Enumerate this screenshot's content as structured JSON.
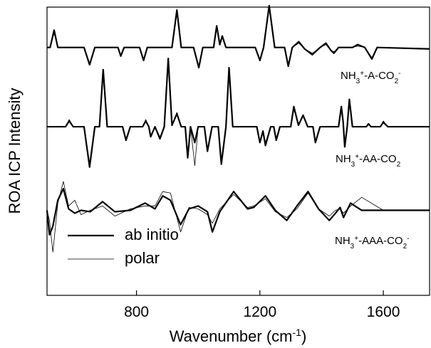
{
  "chart_data": {
    "type": "line",
    "xlabel": [
      "Wavenumber (cm",
      "-1",
      ")"
    ],
    "ylabel": "ROA ICP Intensity",
    "xlim": [
      510,
      1750
    ],
    "ylim": [
      0,
      10
    ],
    "xticks": [
      800,
      1200,
      1600
    ],
    "legend": "lower left",
    "annotations": [
      {
        "parts": [
          "NH",
          "3",
          "+",
          "-A-CO",
          "2",
          "-"
        ]
      },
      {
        "parts": [
          "NH",
          "3",
          "+",
          "-AA-CO",
          "2"
        ]
      },
      {
        "parts": [
          "NH",
          "3",
          "+",
          "-AAA-CO",
          "2",
          "-"
        ]
      }
    ],
    "series": [
      {
        "name": "ab initio",
        "color": "#000000",
        "linewidth": 2.2,
        "x": [
          510,
          520,
          533,
          545,
          630,
          648,
          665,
          740,
          749,
          760,
          810,
          823,
          835,
          915,
          931,
          945,
          985,
          1002,
          1015,
          1050,
          1060,
          1070,
          1078,
          1090,
          1185,
          1200,
          1212,
          1230,
          1248,
          1280,
          1292,
          1305,
          1326,
          1345,
          1370,
          1395,
          1414,
          1430,
          1440,
          1455,
          1500,
          1517,
          1540,
          1563,
          1580,
          1750
        ],
        "values": [
          8.6,
          8.6,
          9.2,
          8.6,
          8.6,
          8.0,
          8.6,
          8.6,
          8.3,
          8.6,
          8.6,
          8.15,
          8.6,
          8.6,
          9.9,
          8.6,
          8.6,
          7.9,
          8.6,
          8.6,
          9.35,
          8.7,
          9.0,
          8.6,
          8.6,
          8.15,
          8.6,
          10.05,
          8.6,
          8.6,
          7.95,
          8.6,
          8.8,
          8.55,
          8.35,
          8.6,
          8.75,
          8.5,
          8.4,
          8.6,
          8.6,
          8.7,
          8.6,
          8.2,
          8.6,
          8.55
        ]
      },
      {
        "name": "polar",
        "color": "#000000",
        "linewidth": 0.8,
        "x": [
          510,
          520,
          533,
          545,
          630,
          648,
          665,
          740,
          749,
          760,
          810,
          823,
          835,
          915,
          931,
          945,
          985,
          1002,
          1015,
          1050,
          1060,
          1070,
          1078,
          1090,
          1185,
          1200,
          1212,
          1230,
          1248,
          1280,
          1292,
          1305,
          1326,
          1345,
          1370,
          1395,
          1414,
          1430,
          1440,
          1455,
          1500,
          1517,
          1540,
          1563,
          1580,
          1750
        ],
        "values": [
          8.6,
          8.6,
          9.1,
          8.6,
          8.6,
          8.05,
          8.6,
          8.6,
          8.35,
          8.6,
          8.6,
          8.2,
          8.6,
          8.6,
          9.8,
          8.6,
          8.6,
          7.95,
          8.6,
          8.6,
          9.3,
          8.75,
          8.95,
          8.6,
          8.6,
          8.2,
          8.6,
          9.95,
          8.6,
          8.6,
          8.0,
          8.6,
          8.75,
          8.55,
          8.4,
          8.6,
          8.7,
          8.5,
          8.45,
          8.6,
          8.6,
          8.65,
          8.6,
          8.25,
          8.6,
          8.55
        ]
      },
      {
        "name": "ab initio",
        "color": "#000000",
        "linewidth": 2.2,
        "x": [
          510,
          570,
          582,
          595,
          630,
          648,
          665,
          680,
          692,
          705,
          755,
          766,
          780,
          820,
          830,
          840,
          846,
          860,
          876,
          890,
          903,
          915,
          931,
          945,
          958,
          966,
          975,
          989,
          1000,
          1020,
          1030,
          1045,
          1065,
          1075,
          1090,
          1100,
          1112,
          1190,
          1200,
          1210,
          1218,
          1235,
          1245,
          1253,
          1265,
          1300,
          1310,
          1325,
          1340,
          1355,
          1372,
          1380,
          1395,
          1455,
          1464,
          1470,
          1475,
          1483,
          1490,
          1500,
          1545,
          1552,
          1560,
          1590,
          1600,
          1615,
          1750
        ],
        "values": [
          5.85,
          5.85,
          6.05,
          5.85,
          5.85,
          4.45,
          5.85,
          5.85,
          7.83,
          5.85,
          5.85,
          5.38,
          5.85,
          5.85,
          6.05,
          5.85,
          5.5,
          5.85,
          5.43,
          5.85,
          8.22,
          5.9,
          6.3,
          5.85,
          5.85,
          4.77,
          5.85,
          5.3,
          5.85,
          5.85,
          5.0,
          5.85,
          5.85,
          4.55,
          5.85,
          7.9,
          5.85,
          5.85,
          5.3,
          5.7,
          5.2,
          5.85,
          5.85,
          5.38,
          5.85,
          5.85,
          6.55,
          5.9,
          6.25,
          5.85,
          5.85,
          5.3,
          5.85,
          5.85,
          6.55,
          6.0,
          5.15,
          5.85,
          6.8,
          5.85,
          5.85,
          5.95,
          5.85,
          5.85,
          6.0,
          5.85,
          5.85
        ]
      },
      {
        "name": "polar",
        "color": "#000000",
        "linewidth": 0.8,
        "x": [
          510,
          570,
          582,
          595,
          630,
          648,
          665,
          680,
          692,
          705,
          755,
          766,
          780,
          820,
          830,
          840,
          846,
          860,
          876,
          890,
          903,
          915,
          931,
          945,
          958,
          966,
          975,
          989,
          1000,
          1020,
          1030,
          1045,
          1065,
          1075,
          1090,
          1100,
          1112,
          1190,
          1200,
          1210,
          1218,
          1235,
          1245,
          1253,
          1265,
          1300,
          1310,
          1325,
          1340,
          1355,
          1372,
          1380,
          1395,
          1455,
          1464,
          1470,
          1475,
          1483,
          1490,
          1500,
          1545,
          1552,
          1560,
          1590,
          1600,
          1615,
          1750
        ],
        "values": [
          5.85,
          5.85,
          6.1,
          5.85,
          5.85,
          4.6,
          5.85,
          5.85,
          7.7,
          5.85,
          5.85,
          5.45,
          5.85,
          5.85,
          6.1,
          5.85,
          5.55,
          5.85,
          5.5,
          5.85,
          8.1,
          5.9,
          6.35,
          5.85,
          5.85,
          4.9,
          5.85,
          4.5,
          5.85,
          5.85,
          5.1,
          5.85,
          5.85,
          4.7,
          5.85,
          7.75,
          5.85,
          5.85,
          5.35,
          5.7,
          5.3,
          5.85,
          5.85,
          5.45,
          5.85,
          5.85,
          6.45,
          5.9,
          6.2,
          5.85,
          5.85,
          5.35,
          5.85,
          5.85,
          6.45,
          6.0,
          5.25,
          5.85,
          6.7,
          5.85,
          5.85,
          5.95,
          5.85,
          5.85,
          6.05,
          5.85,
          5.85
        ]
      },
      {
        "name": "ab initio",
        "color": "#000000",
        "linewidth": 2.2,
        "x": [
          510,
          518,
          529,
          545,
          563,
          580,
          600,
          620,
          650,
          690,
          730,
          780,
          828,
          860,
          885,
          910,
          943,
          970,
          1000,
          1030,
          1046,
          1070,
          1115,
          1160,
          1180,
          1218,
          1250,
          1287,
          1320,
          1356,
          1390,
          1425,
          1445,
          1460,
          1471,
          1494,
          1530,
          1600,
          1750
        ],
        "values": [
          2.95,
          2.1,
          2.4,
          3.3,
          3.7,
          3.0,
          2.85,
          2.95,
          2.9,
          3.25,
          2.9,
          2.95,
          3.2,
          3.0,
          3.45,
          3.3,
          2.45,
          3.0,
          3.1,
          2.9,
          2.2,
          2.9,
          3.6,
          3.0,
          3.05,
          3.45,
          2.95,
          2.6,
          3.1,
          3.6,
          3.0,
          2.6,
          2.85,
          3.05,
          2.7,
          3.2,
          2.95,
          2.95,
          2.95
        ]
      },
      {
        "name": "polar",
        "color": "#000000",
        "linewidth": 0.8,
        "x": [
          510,
          518,
          529,
          545,
          563,
          580,
          600,
          620,
          650,
          690,
          730,
          780,
          828,
          860,
          885,
          910,
          943,
          970,
          1000,
          1030,
          1046,
          1070,
          1115,
          1160,
          1180,
          1218,
          1250,
          1287,
          1320,
          1356,
          1390,
          1425,
          1445,
          1460,
          1471,
          1494,
          1530,
          1600,
          1750
        ],
        "values": [
          2.95,
          2.6,
          1.5,
          3.2,
          3.95,
          3.1,
          3.3,
          2.8,
          2.95,
          3.1,
          2.75,
          3.0,
          3.1,
          3.1,
          3.6,
          3.55,
          2.2,
          3.05,
          3.0,
          2.8,
          2.5,
          3.0,
          3.5,
          3.05,
          3.1,
          3.35,
          2.9,
          2.7,
          3.0,
          3.55,
          3.0,
          2.75,
          2.95,
          3.0,
          2.85,
          3.1,
          3.4,
          2.95,
          2.95
        ]
      }
    ]
  }
}
